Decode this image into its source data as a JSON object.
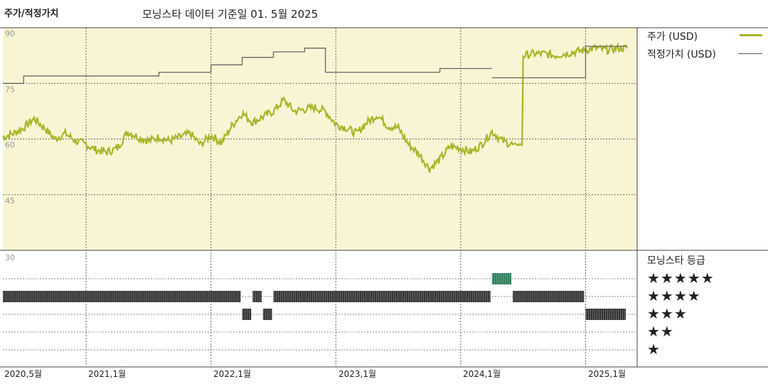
{
  "header": {
    "section_title": "주가/적정가치",
    "date_label": "모닝스타 데이터 기준일 01. 5월 2025"
  },
  "legend": {
    "price_label": "주가 (USD)",
    "fair_value_label": "적정가치 (USD)",
    "rating_title": "모닝스타 등급",
    "price_color": "#a9b52a",
    "fair_value_color": "#666666"
  },
  "rating_stars": [
    "★★★★★",
    "★★★★",
    "★★★",
    "★★",
    "★"
  ],
  "axis": {
    "y_ticks": [
      "90",
      "75",
      "60",
      "45",
      "30"
    ],
    "x_ticks": [
      "2020,5월",
      "2021,1월",
      "2022,1월",
      "2023,1월",
      "2024,1월",
      "2025,1월"
    ]
  },
  "chart_data": {
    "type": "line",
    "x_range": [
      "2020-05",
      "2025-05"
    ],
    "ylim": [
      30,
      90
    ],
    "grid": true,
    "legend_position": "right",
    "series": [
      {
        "name": "주가 (USD)",
        "points": [
          [
            "2020-05",
            60.5
          ],
          [
            "2020-06",
            61.5
          ],
          [
            "2020-07",
            63.0
          ],
          [
            "2020-08",
            65.5
          ],
          [
            "2020-09",
            63.0
          ],
          [
            "2020-10",
            60.0
          ],
          [
            "2020-11",
            61.5
          ],
          [
            "2020-12",
            59.5
          ],
          [
            "2021-01",
            58.5
          ],
          [
            "2021-02",
            57.0
          ],
          [
            "2021-03",
            56.5
          ],
          [
            "2021-04",
            57.5
          ],
          [
            "2021-05",
            62.0
          ],
          [
            "2021-06",
            60.5
          ],
          [
            "2021-07",
            59.5
          ],
          [
            "2021-08",
            60.5
          ],
          [
            "2021-09",
            59.5
          ],
          [
            "2021-10",
            60.5
          ],
          [
            "2021-11",
            61.5
          ],
          [
            "2021-12",
            58.5
          ],
          [
            "2022-01",
            61.0
          ],
          [
            "2022-02",
            59.0
          ],
          [
            "2022-03",
            63.5
          ],
          [
            "2022-04",
            67.0
          ],
          [
            "2022-05",
            64.5
          ],
          [
            "2022-06",
            66.0
          ],
          [
            "2022-07",
            67.5
          ],
          [
            "2022-08",
            70.5
          ],
          [
            "2022-09",
            67.5
          ],
          [
            "2022-10",
            68.0
          ],
          [
            "2022-11",
            68.5
          ],
          [
            "2022-12",
            67.5
          ],
          [
            "2023-01",
            64.0
          ],
          [
            "2023-02",
            63.0
          ],
          [
            "2023-03",
            61.5
          ],
          [
            "2023-04",
            64.5
          ],
          [
            "2023-05",
            66.5
          ],
          [
            "2023-06",
            63.5
          ],
          [
            "2023-07",
            63.0
          ],
          [
            "2023-08",
            58.5
          ],
          [
            "2023-09",
            56.0
          ],
          [
            "2023-10",
            52.0
          ],
          [
            "2023-11",
            54.5
          ],
          [
            "2023-12",
            58.0
          ],
          [
            "2024-01",
            57.5
          ],
          [
            "2024-02",
            56.5
          ],
          [
            "2024-03",
            58.5
          ],
          [
            "2024-04",
            62.0
          ],
          [
            "2024-05",
            59.5
          ],
          [
            "2024-06",
            58.5
          ],
          [
            "2024-07",
            82.5
          ],
          [
            "2024-08",
            83.0
          ],
          [
            "2024-09",
            83.0
          ],
          [
            "2024-10",
            82.5
          ],
          [
            "2024-11",
            83.0
          ],
          [
            "2024-12",
            83.5
          ],
          [
            "2025-01",
            84.0
          ],
          [
            "2025-02",
            84.5
          ],
          [
            "2025-03",
            84.0
          ],
          [
            "2025-04",
            84.5
          ],
          [
            "2025-05",
            84.5
          ]
        ]
      },
      {
        "name": "적정가치 (USD)",
        "segments": [
          [
            [
              "2020-05",
              75.0
            ],
            [
              "2020-07",
              75.0
            ],
            [
              "2020-07",
              77.0
            ],
            [
              "2021-08",
              77.0
            ],
            [
              "2021-08",
              78.0
            ],
            [
              "2022-01",
              78.0
            ],
            [
              "2022-01",
              80.0
            ],
            [
              "2022-04",
              80.0
            ],
            [
              "2022-04",
              82.0
            ],
            [
              "2022-07",
              82.0
            ],
            [
              "2022-07",
              83.5
            ],
            [
              "2022-10",
              83.5
            ],
            [
              "2022-10",
              84.5
            ],
            [
              "2022-12",
              84.5
            ],
            [
              "2022-12",
              78.0
            ],
            [
              "2023-11",
              78.0
            ],
            [
              "2023-11",
              79.0
            ],
            [
              "2024-04",
              79.0
            ]
          ],
          [
            [
              "2024-04",
              76.5
            ],
            [
              "2025-01",
              76.5
            ],
            [
              "2025-01",
              85.0
            ],
            [
              "2025-05",
              85.0
            ]
          ]
        ]
      }
    ],
    "star_rating": [
      {
        "from": "2020-05",
        "to": "2022-04",
        "stars": 4
      },
      {
        "from": "2022-04",
        "to": "2022-05",
        "stars": 3
      },
      {
        "from": "2022-05",
        "to": "2022-06",
        "stars": 4
      },
      {
        "from": "2022-06",
        "to": "2022-07",
        "stars": 3
      },
      {
        "from": "2022-07",
        "to": "2024-04",
        "stars": 4
      },
      {
        "from": "2024-04",
        "to": "2024-06",
        "stars": 5
      },
      {
        "from": "2024-06",
        "to": "2025-01",
        "stars": 4
      },
      {
        "from": "2025-01",
        "to": "2025-05",
        "stars": 3
      }
    ]
  }
}
